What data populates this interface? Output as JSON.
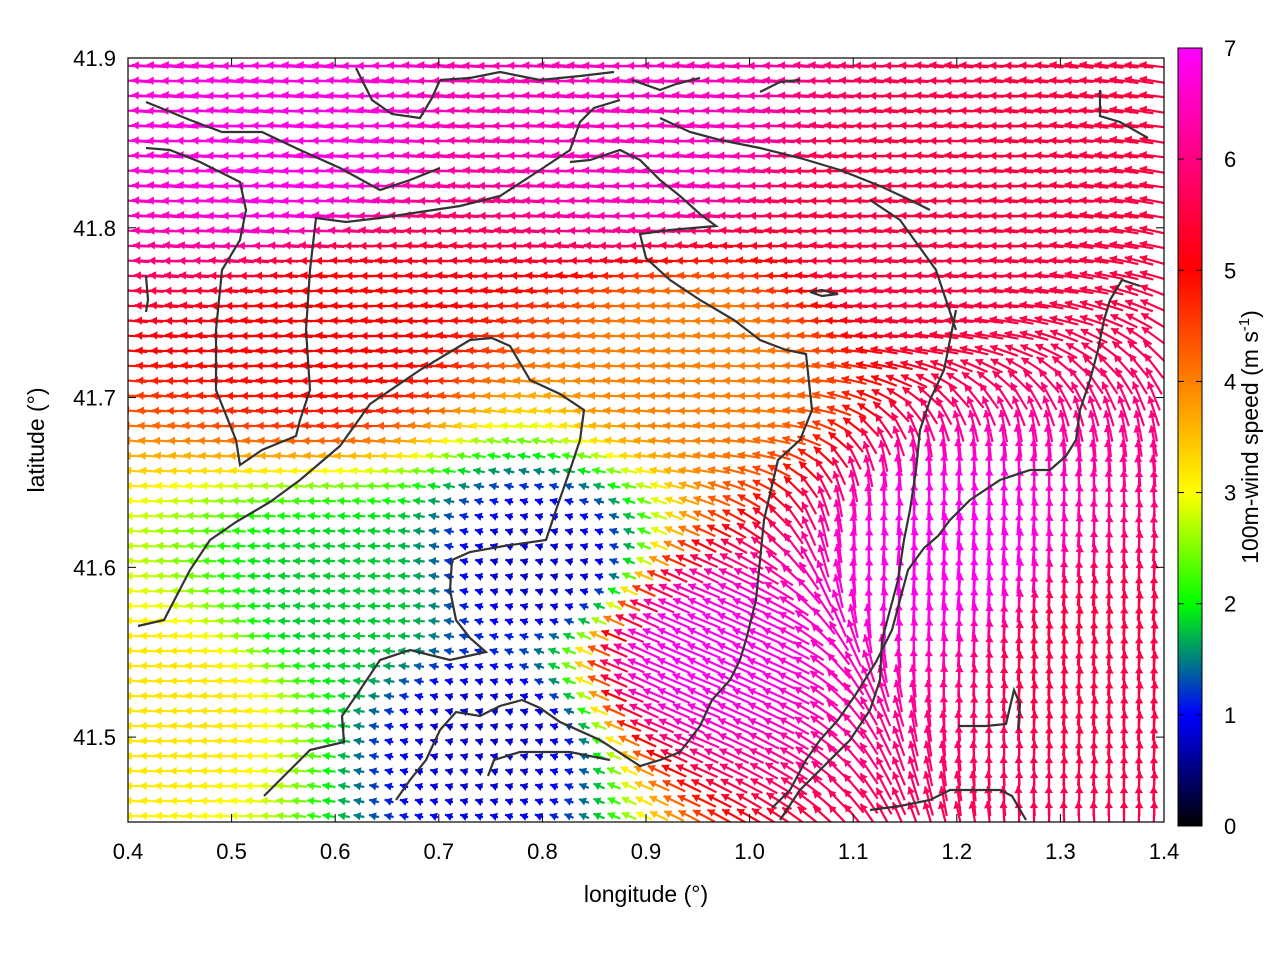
{
  "chart_data": {
    "type": "vector-field",
    "xlabel": "longitude (°)",
    "ylabel": "latitude (°)",
    "xlim": [
      0.4,
      1.4
    ],
    "ylim": [
      41.45,
      41.9
    ],
    "xticks": [
      0.4,
      0.5,
      0.6,
      0.7,
      0.8,
      0.9,
      1.0,
      1.1,
      1.2,
      1.3,
      1.4
    ],
    "xtick_labels": [
      "0.4",
      "0.5",
      "0.6",
      "0.7",
      "0.8",
      "0.9",
      "1.0",
      "1.1",
      "1.2",
      "1.3",
      "1.4"
    ],
    "yticks": [
      41.5,
      41.6,
      41.7,
      41.8,
      41.9
    ],
    "ytick_labels": [
      "41.5",
      "41.6",
      "41.7",
      "41.8",
      "41.9"
    ],
    "colorbar": {
      "label_main": "100m-wind speed (m s",
      "label_sup": "-1",
      "label_end": ")",
      "range": [
        0,
        7
      ],
      "ticks": [
        0,
        1,
        2,
        3,
        4,
        5,
        6,
        7
      ],
      "tick_labels": [
        "0",
        "1",
        "2",
        "3",
        "4",
        "5",
        "6",
        "7"
      ],
      "color_stops": [
        "#000000",
        "#0000ff",
        "#00ff00",
        "#ffff00",
        "#ff8000",
        "#ff0000",
        "#ff00ff"
      ]
    },
    "grid": false,
    "wind_regions": [
      {
        "lon": 0.55,
        "lat": 41.84,
        "speed": 6.8,
        "direction": "westward"
      },
      {
        "lon": 0.9,
        "lat": 41.85,
        "speed": 6.5,
        "direction": "westward"
      },
      {
        "lon": 1.15,
        "lat": 41.8,
        "speed": 5.5,
        "direction": "westward"
      },
      {
        "lon": 0.6,
        "lat": 41.74,
        "speed": 5.0,
        "direction": "westward"
      },
      {
        "lon": 0.95,
        "lat": 41.72,
        "speed": 4.0,
        "direction": "westward"
      },
      {
        "lon": 0.8,
        "lat": 41.6,
        "speed": 0.8,
        "direction": "variable"
      },
      {
        "lon": 0.6,
        "lat": 41.58,
        "speed": 1.8,
        "direction": "westward"
      },
      {
        "lon": 0.95,
        "lat": 41.55,
        "speed": 6.9,
        "direction": "north-westward"
      },
      {
        "lon": 1.2,
        "lat": 41.6,
        "speed": 6.9,
        "direction": "northward"
      },
      {
        "lon": 1.32,
        "lat": 41.55,
        "speed": 5.5,
        "direction": "northward"
      },
      {
        "lon": 0.75,
        "lat": 41.5,
        "speed": 0.8,
        "direction": "variable"
      },
      {
        "lon": 0.45,
        "lat": 41.52,
        "speed": 3.2,
        "direction": "westward"
      }
    ]
  }
}
